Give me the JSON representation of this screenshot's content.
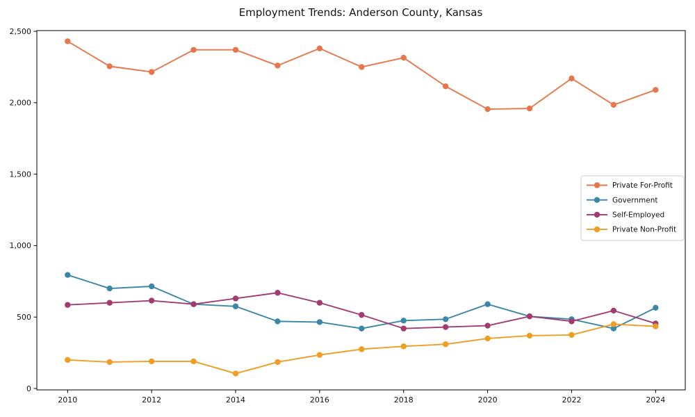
{
  "chart_data": {
    "type": "line",
    "title": "Employment Trends: Anderson County, Kansas",
    "xlabel": "",
    "ylabel": "",
    "grid": false,
    "legend_position": "center-right",
    "legend_border_color": "#cccccc",
    "axis_color": "#000000",
    "background_color": "#ffffff",
    "x": [
      2010,
      2011,
      2012,
      2013,
      2014,
      2015,
      2016,
      2017,
      2018,
      2019,
      2020,
      2021,
      2022,
      2023,
      2024
    ],
    "xticks": [
      2010,
      2012,
      2014,
      2016,
      2018,
      2020,
      2022,
      2024
    ],
    "xtick_labels": [
      "2010",
      "2012",
      "2014",
      "2016",
      "2018",
      "2020",
      "2022",
      "2024"
    ],
    "ytick_values": [
      0,
      500,
      1000,
      1500,
      2000,
      2500
    ],
    "ytick_labels": [
      "0",
      "500",
      "1,000",
      "1,500",
      "2,000",
      "2,500"
    ],
    "ylim": [
      0,
      2500
    ],
    "series": [
      {
        "name": "Private For-Profit",
        "color": "#e8764b",
        "values": [
          2430,
          2255,
          2215,
          2370,
          2370,
          2260,
          2380,
          2250,
          2315,
          2115,
          1955,
          1960,
          2170,
          1985,
          2090
        ]
      },
      {
        "name": "Government",
        "color": "#3a87a8",
        "values": [
          795,
          700,
          715,
          590,
          575,
          470,
          465,
          420,
          475,
          485,
          590,
          505,
          485,
          420,
          565
        ]
      },
      {
        "name": "Self-Employed",
        "color": "#a23b72",
        "values": [
          585,
          600,
          615,
          590,
          630,
          670,
          600,
          515,
          420,
          430,
          440,
          505,
          470,
          545,
          455
        ]
      },
      {
        "name": "Private Non-Profit",
        "color": "#f09d24",
        "values": [
          200,
          185,
          190,
          190,
          105,
          185,
          235,
          275,
          295,
          310,
          350,
          370,
          375,
          450,
          435
        ]
      }
    ]
  }
}
